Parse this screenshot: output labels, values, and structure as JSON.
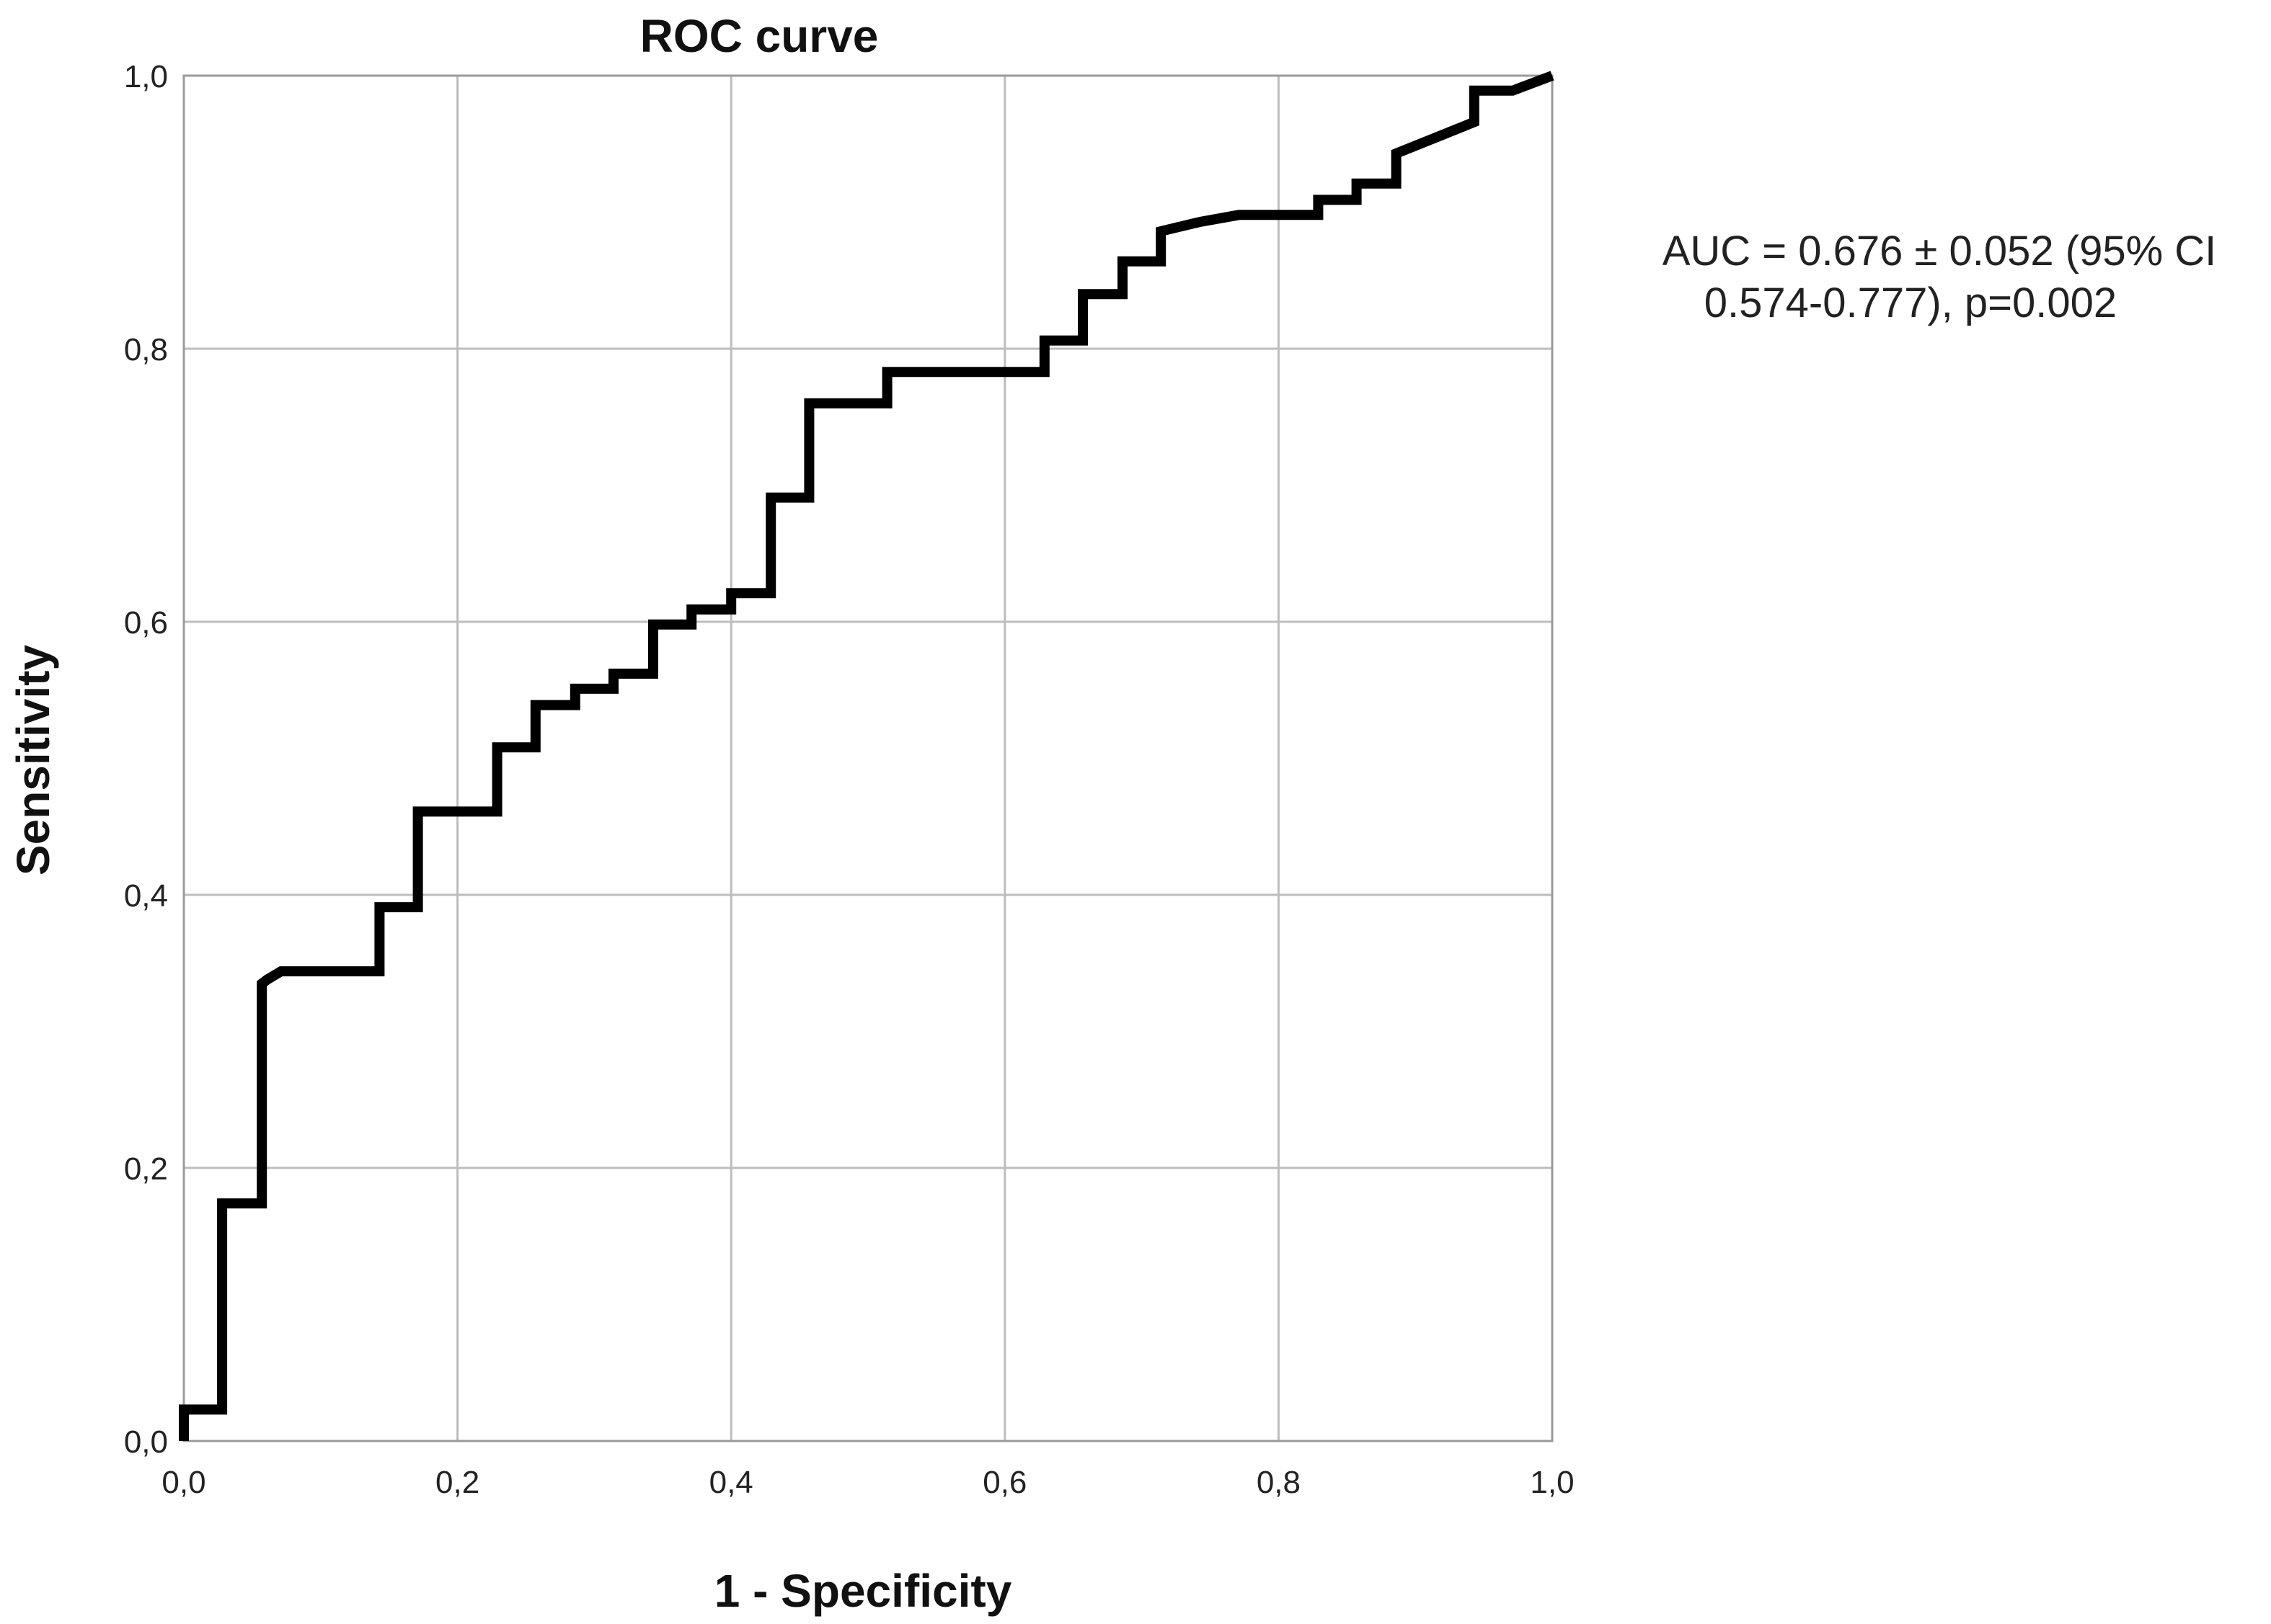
{
  "chart_data": {
    "type": "line",
    "title": "ROC curve",
    "xlabel": "1 - Specificity",
    "ylabel": "Sensitivity",
    "xlim": [
      0,
      1
    ],
    "ylim": [
      0,
      1
    ],
    "grid": true,
    "x_ticks": [
      "0,0",
      "0,2",
      "0,4",
      "0,6",
      "0,8",
      "1,0"
    ],
    "y_ticks": [
      "0,0",
      "0,2",
      "0,4",
      "0,6",
      "0,8",
      "1,0"
    ],
    "annotation": [
      "AUC = 0.676 ± 0.052 (95% CI",
      "0.574-0.777), p=0.002"
    ],
    "series": [
      {
        "x": [
          0,
          0,
          0.028,
          0.028,
          0.057,
          0.057,
          0.061,
          0.071,
          0.086,
          0.143,
          0.143,
          0.171,
          0.171,
          0.229,
          0.229,
          0.257,
          0.257,
          0.286,
          0.286,
          0.314,
          0.314,
          0.343,
          0.343,
          0.371,
          0.371,
          0.4,
          0.4,
          0.429,
          0.429,
          0.457,
          0.457,
          0.514,
          0.514,
          0.629,
          0.629,
          0.657,
          0.657,
          0.686,
          0.686,
          0.714,
          0.714,
          0.743,
          0.771,
          0.829,
          0.829,
          0.857,
          0.857,
          0.886,
          0.886,
          0.943,
          0.943,
          0.971,
          1.0
        ],
        "y": [
          0,
          0.023,
          0.023,
          0.174,
          0.174,
          0.335,
          0.338,
          0.344,
          0.344,
          0.344,
          0.391,
          0.391,
          0.461,
          0.461,
          0.508,
          0.508,
          0.539,
          0.539,
          0.551,
          0.551,
          0.562,
          0.562,
          0.598,
          0.598,
          0.609,
          0.609,
          0.621,
          0.621,
          0.691,
          0.691,
          0.76,
          0.76,
          0.783,
          0.783,
          0.806,
          0.806,
          0.84,
          0.84,
          0.864,
          0.864,
          0.886,
          0.893,
          0.898,
          0.898,
          0.909,
          0.909,
          0.921,
          0.921,
          0.943,
          0.966,
          0.989,
          0.989,
          1.0
        ]
      }
    ]
  }
}
